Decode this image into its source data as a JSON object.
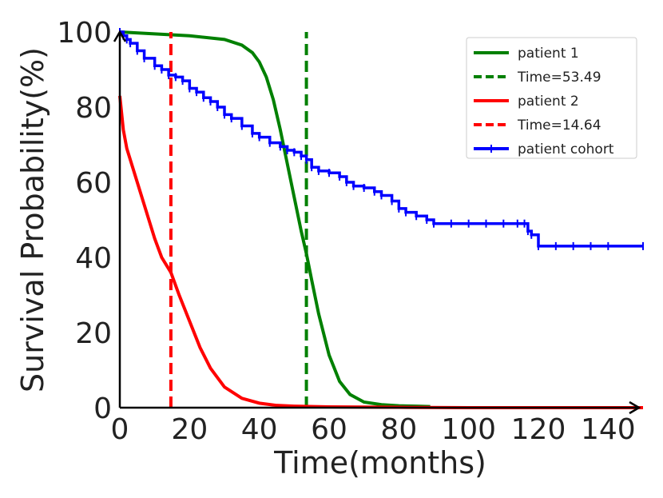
{
  "chart_data": {
    "type": "line",
    "title": "",
    "xlabel": "Time(months)",
    "ylabel": "Survival Probability(%)",
    "xlim": [
      0,
      150
    ],
    "ylim": [
      0,
      100
    ],
    "xticks": [
      "0",
      "20",
      "40",
      "60",
      "80",
      "100",
      "120",
      "140"
    ],
    "yticks": [
      "0",
      "20",
      "40",
      "60",
      "80",
      "100"
    ],
    "grid": false,
    "legend_position": "top-right",
    "series": [
      {
        "name": "patient 1",
        "style": "solid",
        "color": "#008000",
        "x": [
          0,
          10,
          20,
          30,
          35,
          38,
          40,
          42,
          44,
          46,
          48,
          50,
          52,
          53.49,
          55,
          57,
          60,
          63,
          66,
          70,
          75,
          80,
          85,
          89
        ],
        "y": [
          100,
          99.5,
          99,
          98,
          96.5,
          94.5,
          92,
          88,
          82,
          74,
          65,
          56,
          47,
          41,
          34,
          25,
          14,
          7,
          3.5,
          1.5,
          0.8,
          0.5,
          0.4,
          0.3
        ]
      },
      {
        "name": "Time=53.49",
        "style": "dashed",
        "color": "#008000",
        "x": [
          53.49,
          53.49
        ],
        "y": [
          0,
          100
        ]
      },
      {
        "name": "patient 2",
        "style": "solid",
        "color": "#ff0000",
        "x": [
          0,
          1,
          2,
          4,
          6,
          8,
          10,
          12,
          14.64,
          17,
          20,
          23,
          26,
          30,
          35,
          40,
          45,
          50,
          60,
          80,
          100,
          120,
          150
        ],
        "y": [
          83,
          74,
          69,
          63,
          57,
          51,
          45,
          40,
          36,
          30,
          23,
          16,
          10.5,
          5.5,
          2.5,
          1.2,
          0.6,
          0.4,
          0.2,
          0.1,
          0,
          0,
          0
        ]
      },
      {
        "name": "Time=14.64",
        "style": "dashed",
        "color": "#ff0000",
        "x": [
          14.64,
          14.64
        ],
        "y": [
          0,
          100
        ]
      },
      {
        "name": "patient cohort",
        "style": "step",
        "color": "#0000ff",
        "x": [
          0,
          1,
          2,
          3,
          5,
          7,
          10,
          12,
          14,
          16,
          18,
          20,
          22,
          24,
          26,
          28,
          30,
          32,
          35,
          38,
          40,
          43,
          46,
          48,
          50,
          52,
          53.5,
          55,
          57,
          60,
          63,
          65,
          67,
          70,
          73,
          75,
          78,
          80,
          82,
          85,
          88,
          90,
          95,
          100,
          105,
          110,
          114,
          116,
          117,
          118,
          120,
          125,
          130,
          135,
          140,
          150
        ],
        "y": [
          100,
          99,
          98,
          97,
          95,
          93,
          91,
          90,
          88.5,
          88,
          87,
          85,
          84,
          82.5,
          81.5,
          80,
          78,
          77,
          75,
          73,
          72,
          70.5,
          69.5,
          68.5,
          68,
          67,
          66,
          64,
          63,
          62.5,
          61.5,
          60,
          59,
          58.5,
          57.5,
          56.5,
          55,
          53,
          52,
          51,
          50,
          49,
          49,
          49,
          49,
          49,
          49,
          49,
          47,
          46,
          43,
          43,
          43,
          43,
          43,
          43
        ]
      }
    ]
  }
}
